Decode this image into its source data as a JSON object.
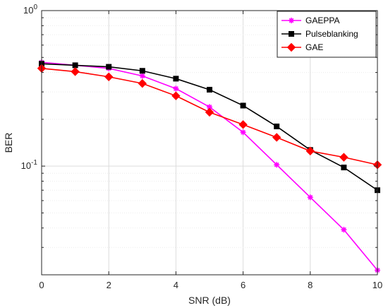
{
  "chart_data": {
    "type": "line",
    "xlabel": "SNR (dB)",
    "ylabel": "BER",
    "xlim": [
      0,
      10
    ],
    "ylim": [
      0.02,
      1
    ],
    "yscale": "log",
    "grid": true,
    "legend_position": "top-right",
    "x_ticks": [
      0,
      2,
      4,
      6,
      8,
      10
    ],
    "x_tick_labels": [
      "0",
      "2",
      "4",
      "6",
      "8",
      "10"
    ],
    "y_ticks": [
      {
        "value": 1,
        "base": "10",
        "exp": "0"
      },
      {
        "value": 0.1,
        "base": "10",
        "exp": "-1"
      }
    ],
    "x": [
      0,
      1,
      2,
      3,
      4,
      5,
      6,
      7,
      8,
      9,
      10
    ],
    "series": [
      {
        "name": "GAEPPA",
        "color": "#ff00ff",
        "marker": "asterisk",
        "values": [
          0.465,
          0.445,
          0.425,
          0.38,
          0.315,
          0.24,
          0.165,
          0.102,
          0.063,
          0.039,
          0.0214
        ]
      },
      {
        "name": "Pulseblanking",
        "color": "#000000",
        "marker": "square",
        "values": [
          0.455,
          0.445,
          0.435,
          0.41,
          0.365,
          0.31,
          0.245,
          0.18,
          0.127,
          0.098,
          0.07
        ]
      },
      {
        "name": "GAE",
        "color": "#ff0000",
        "marker": "diamond",
        "values": [
          0.425,
          0.405,
          0.375,
          0.34,
          0.283,
          0.222,
          0.185,
          0.153,
          0.125,
          0.114,
          0.102
        ]
      }
    ]
  }
}
